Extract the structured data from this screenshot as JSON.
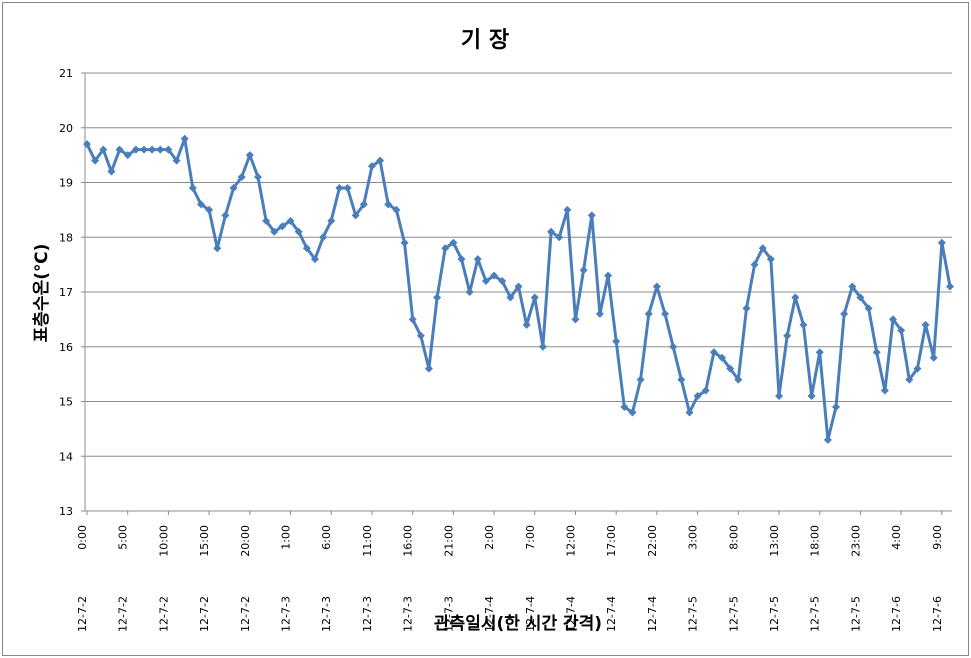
{
  "chart_data": {
    "type": "line",
    "title": "기 장",
    "xlabel": "관측일시(한 시간 간격)",
    "ylabel": "표층수온(℃)",
    "ylim": [
      13,
      21
    ],
    "yticks": [
      13,
      14,
      15,
      16,
      17,
      18,
      19,
      20,
      21
    ],
    "grid": true,
    "line_color": "#4a7ebb",
    "x": [
      "12-7-2 0:00",
      "12-7-2 1:00",
      "12-7-2 2:00",
      "12-7-2 3:00",
      "12-7-2 4:00",
      "12-7-2 5:00",
      "12-7-2 6:00",
      "12-7-2 7:00",
      "12-7-2 8:00",
      "12-7-2 9:00",
      "12-7-2 10:00",
      "12-7-2 11:00",
      "12-7-2 12:00",
      "12-7-2 13:00",
      "12-7-2 14:00",
      "12-7-2 15:00",
      "12-7-2 16:00",
      "12-7-2 17:00",
      "12-7-2 18:00",
      "12-7-2 19:00",
      "12-7-2 20:00",
      "12-7-2 21:00",
      "12-7-2 22:00",
      "12-7-2 23:00",
      "12-7-3 0:00",
      "12-7-3 1:00",
      "12-7-3 2:00",
      "12-7-3 3:00",
      "12-7-3 4:00",
      "12-7-3 5:00",
      "12-7-3 6:00",
      "12-7-3 7:00",
      "12-7-3 8:00",
      "12-7-3 9:00",
      "12-7-3 10:00",
      "12-7-3 11:00",
      "12-7-3 12:00",
      "12-7-3 13:00",
      "12-7-3 14:00",
      "12-7-3 15:00",
      "12-7-3 16:00",
      "12-7-3 17:00",
      "12-7-3 18:00",
      "12-7-3 19:00",
      "12-7-3 20:00",
      "12-7-3 21:00",
      "12-7-3 22:00",
      "12-7-3 23:00",
      "12-7-4 0:00",
      "12-7-4 1:00",
      "12-7-4 2:00",
      "12-7-4 3:00",
      "12-7-4 4:00",
      "12-7-4 5:00",
      "12-7-4 6:00",
      "12-7-4 7:00",
      "12-7-4 8:00",
      "12-7-4 9:00",
      "12-7-4 10:00",
      "12-7-4 11:00",
      "12-7-4 12:00",
      "12-7-4 13:00",
      "12-7-4 14:00",
      "12-7-4 15:00",
      "12-7-4 16:00",
      "12-7-4 17:00",
      "12-7-4 18:00",
      "12-7-4 19:00",
      "12-7-4 20:00",
      "12-7-4 21:00",
      "12-7-4 22:00",
      "12-7-4 23:00",
      "12-7-5 0:00",
      "12-7-5 1:00",
      "12-7-5 2:00",
      "12-7-5 3:00",
      "12-7-5 4:00",
      "12-7-5 5:00",
      "12-7-5 6:00",
      "12-7-5 7:00",
      "12-7-5 8:00",
      "12-7-5 9:00",
      "12-7-5 10:00",
      "12-7-5 11:00",
      "12-7-5 12:00",
      "12-7-5 13:00",
      "12-7-5 14:00",
      "12-7-5 15:00",
      "12-7-5 16:00",
      "12-7-5 17:00",
      "12-7-5 18:00",
      "12-7-5 19:00",
      "12-7-5 20:00",
      "12-7-5 21:00",
      "12-7-5 22:00",
      "12-7-5 23:00",
      "12-7-6 0:00",
      "12-7-6 1:00",
      "12-7-6 2:00",
      "12-7-6 3:00",
      "12-7-6 4:00",
      "12-7-6 5:00",
      "12-7-6 6:00",
      "12-7-6 7:00",
      "12-7-6 8:00",
      "12-7-6 9:00",
      "12-7-6 10:00"
    ],
    "x_tick_labels": [
      {
        "index": 0,
        "date": "12-7-2",
        "time": "0:00"
      },
      {
        "index": 5,
        "date": "12-7-2",
        "time": "5:00"
      },
      {
        "index": 10,
        "date": "12-7-2",
        "time": "10:00"
      },
      {
        "index": 15,
        "date": "12-7-2",
        "time": "15:00"
      },
      {
        "index": 20,
        "date": "12-7-2",
        "time": "20:00"
      },
      {
        "index": 25,
        "date": "12-7-3",
        "time": "1:00"
      },
      {
        "index": 30,
        "date": "12-7-3",
        "time": "6:00"
      },
      {
        "index": 35,
        "date": "12-7-3",
        "time": "11:00"
      },
      {
        "index": 40,
        "date": "12-7-3",
        "time": "16:00"
      },
      {
        "index": 45,
        "date": "12-7-3",
        "time": "21:00"
      },
      {
        "index": 50,
        "date": "12-7-4",
        "time": "2:00"
      },
      {
        "index": 55,
        "date": "12-7-4",
        "time": "7:00"
      },
      {
        "index": 60,
        "date": "12-7-4",
        "time": "12:00"
      },
      {
        "index": 65,
        "date": "12-7-4",
        "time": "17:00"
      },
      {
        "index": 70,
        "date": "12-7-4",
        "time": "22:00"
      },
      {
        "index": 75,
        "date": "12-7-5",
        "time": "3:00"
      },
      {
        "index": 80,
        "date": "12-7-5",
        "time": "8:00"
      },
      {
        "index": 85,
        "date": "12-7-5",
        "time": "13:00"
      },
      {
        "index": 90,
        "date": "12-7-5",
        "time": "18:00"
      },
      {
        "index": 95,
        "date": "12-7-5",
        "time": "23:00"
      },
      {
        "index": 100,
        "date": "12-7-6",
        "time": "4:00"
      },
      {
        "index": 105,
        "date": "12-7-6",
        "time": "9:00"
      }
    ],
    "series": [
      {
        "values": [
          19.7,
          19.4,
          19.6,
          19.2,
          19.6,
          19.5,
          19.6,
          19.6,
          19.6,
          19.6,
          19.6,
          19.4,
          19.8,
          18.9,
          18.6,
          18.5,
          17.8,
          18.4,
          18.9,
          19.1,
          19.5,
          19.1,
          18.3,
          18.1,
          18.2,
          18.3,
          18.1,
          17.8,
          17.6,
          18.0,
          18.3,
          18.9,
          18.9,
          18.4,
          18.6,
          19.3,
          19.4,
          18.6,
          18.5,
          17.9,
          16.5,
          16.2,
          15.6,
          16.9,
          17.8,
          17.9,
          17.6,
          17.0,
          17.6,
          17.2,
          17.3,
          17.2,
          16.9,
          17.1,
          16.4,
          16.9,
          16.0,
          18.1,
          18.0,
          18.5,
          16.5,
          17.4,
          18.4,
          16.6,
          17.3,
          16.1,
          14.9,
          14.8,
          15.4,
          16.6,
          17.1,
          16.6,
          16.0,
          15.4,
          14.8,
          15.1,
          15.2,
          15.9,
          15.8,
          15.6,
          15.4,
          16.7,
          17.5,
          17.8,
          17.6,
          15.1,
          16.2,
          16.9,
          16.4,
          15.1,
          15.9,
          14.3,
          14.9,
          16.6,
          17.1,
          16.9,
          16.7,
          15.9,
          15.2,
          16.5,
          16.3,
          15.4,
          15.6,
          16.4,
          15.8,
          17.9,
          17.1
        ]
      }
    ]
  }
}
